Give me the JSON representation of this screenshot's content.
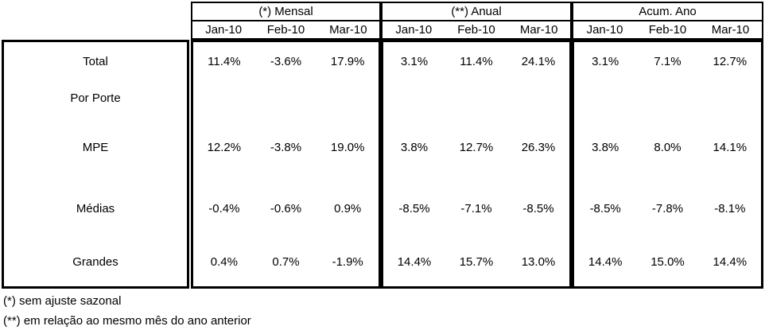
{
  "colors": {
    "border": "#000000",
    "background": "#ffffff",
    "text": "#000000"
  },
  "table": {
    "sections": [
      {
        "title": "(*) Mensal",
        "months": [
          "Jan-10",
          "Feb-10",
          "Mar-10"
        ]
      },
      {
        "title": "(**) Anual",
        "months": [
          "Jan-10",
          "Feb-10",
          "Mar-10"
        ]
      },
      {
        "title": "Acum. Ano",
        "months": [
          "Jan-10",
          "Feb-10",
          "Mar-10"
        ]
      }
    ],
    "rows": [
      {
        "label": "Total",
        "values": [
          [
            "11.4%",
            "-3.6%",
            "17.9%"
          ],
          [
            "3.1%",
            "11.4%",
            "24.1%"
          ],
          [
            "3.1%",
            "7.1%",
            "12.7%"
          ]
        ]
      },
      {
        "label": "Por Porte",
        "values": [
          [
            "",
            "",
            ""
          ],
          [
            "",
            "",
            ""
          ],
          [
            "",
            "",
            ""
          ]
        ]
      },
      {
        "label": "MPE",
        "values": [
          [
            "12.2%",
            "-3.8%",
            "19.0%"
          ],
          [
            "3.8%",
            "12.7%",
            "26.3%"
          ],
          [
            "3.8%",
            "8.0%",
            "14.1%"
          ]
        ]
      },
      {
        "label": "Médias",
        "values": [
          [
            "-0.4%",
            "-0.6%",
            "0.9%"
          ],
          [
            "-8.5%",
            "-7.1%",
            "-8.5%"
          ],
          [
            "-8.5%",
            "-7.8%",
            "-8.1%"
          ]
        ]
      },
      {
        "label": "Grandes",
        "values": [
          [
            "0.4%",
            "0.7%",
            "-1.9%"
          ],
          [
            "14.4%",
            "15.7%",
            "13.0%"
          ],
          [
            "14.4%",
            "15.0%",
            "14.4%"
          ]
        ]
      }
    ]
  },
  "footnotes": [
    "(*) sem ajuste sazonal",
    "(**) em relação ao mesmo mês do ano anterior"
  ]
}
